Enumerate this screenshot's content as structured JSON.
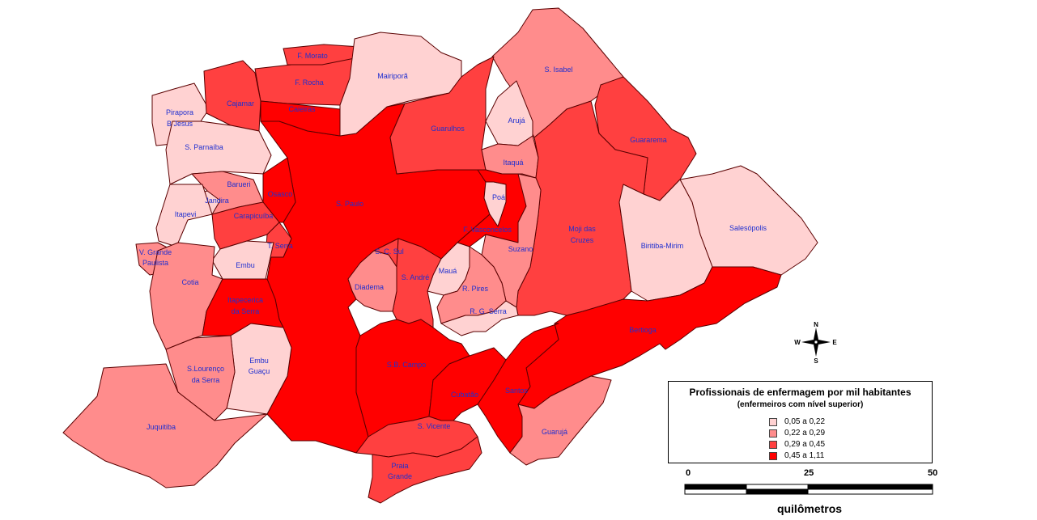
{
  "colors": {
    "class1": "#ffd2d2",
    "class2": "#ff8c8c",
    "class3": "#ff4040",
    "class4": "#ff0000",
    "border": "#5a0000",
    "label": "#1f2fd0"
  },
  "legend": {
    "title": "Profissionais de enfermagem por mil habitantes",
    "subtitle": "(enfermeiros com nível superior)",
    "classes": [
      {
        "label": "0,05 a 0,22",
        "color": "#ffd2d2"
      },
      {
        "label": "0,22 a 0,29",
        "color": "#ff8c8c"
      },
      {
        "label": "0,29 a 0,45",
        "color": "#ff4040"
      },
      {
        "label": "0,45 a 1,11",
        "color": "#ff0000"
      }
    ]
  },
  "scale": {
    "ticks": [
      "0",
      "25",
      "50"
    ],
    "unit": "quilômetros"
  },
  "compass": {
    "n": "N",
    "s": "S",
    "e": "E",
    "w": "W"
  },
  "municipalities": [
    {
      "name": "F. Morato",
      "class": 3
    },
    {
      "name": "F. Rocha",
      "class": 3
    },
    {
      "name": "Mairiporã",
      "class": 1
    },
    {
      "name": "S. Isabel",
      "class": 2
    },
    {
      "name": "Pirapora B Jesus",
      "class": 1
    },
    {
      "name": "Cajamar",
      "class": 3
    },
    {
      "name": "Caieiras",
      "class": 4
    },
    {
      "name": "Arujá",
      "class": 1
    },
    {
      "name": "Guarulhos",
      "class": 3
    },
    {
      "name": "S. Parnaíba",
      "class": 1
    },
    {
      "name": "Guararema",
      "class": 3
    },
    {
      "name": "Itaquá",
      "class": 2
    },
    {
      "name": "Barueri",
      "class": 2
    },
    {
      "name": "Osasco",
      "class": 4
    },
    {
      "name": "Jandira",
      "class": 1
    },
    {
      "name": "S. Paulo",
      "class": 4
    },
    {
      "name": "Poá",
      "class": 1
    },
    {
      "name": "Itapevi",
      "class": 1
    },
    {
      "name": "Carapicuíba",
      "class": 3
    },
    {
      "name": "Salesópolis",
      "class": 1
    },
    {
      "name": "F. Vasconcelos",
      "class": 4
    },
    {
      "name": "Moji das Cruzes",
      "class": 3
    },
    {
      "name": "Biritiba-Mirim",
      "class": 1
    },
    {
      "name": "T. Serra",
      "class": 3
    },
    {
      "name": "V. Grande Paulista",
      "class": 2
    },
    {
      "name": "S. C. Sul",
      "class": 3
    },
    {
      "name": "Suzano",
      "class": 2
    },
    {
      "name": "Embu",
      "class": 1
    },
    {
      "name": "Mauá",
      "class": 1
    },
    {
      "name": "Cotia",
      "class": 2
    },
    {
      "name": "S. André",
      "class": 3
    },
    {
      "name": "Diadema",
      "class": 2
    },
    {
      "name": "R. Pires",
      "class": 2
    },
    {
      "name": "Itapecerica da Serra",
      "class": 4
    },
    {
      "name": "R. G. Serra",
      "class": 1
    },
    {
      "name": "Bertioga",
      "class": 4
    },
    {
      "name": "Embu Guaçu",
      "class": 1
    },
    {
      "name": "S.Lourenço da Serra",
      "class": 2
    },
    {
      "name": "S.B. Campo",
      "class": 4
    },
    {
      "name": "Santos",
      "class": 4
    },
    {
      "name": "Cubatão",
      "class": 4
    },
    {
      "name": "Juquitiba",
      "class": 2
    },
    {
      "name": "S. Vicente",
      "class": 3
    },
    {
      "name": "Guarujá",
      "class": 2
    },
    {
      "name": "Praia Grande",
      "class": 3
    }
  ]
}
